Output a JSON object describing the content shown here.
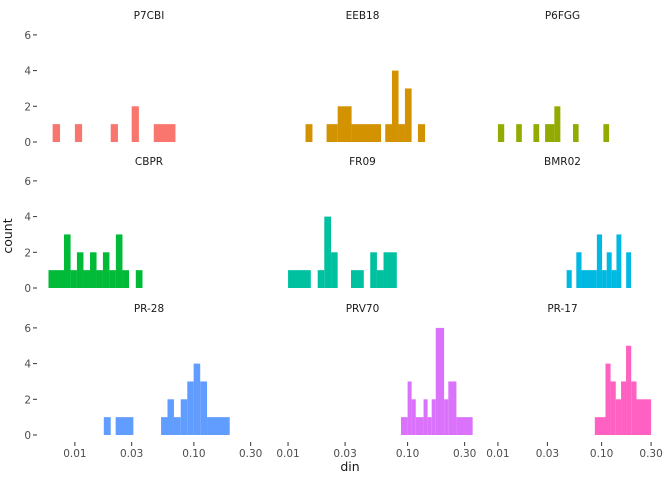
{
  "chart_data": {
    "type": "histogram-facets",
    "xlabel": "din",
    "ylabel": "count",
    "x_scale": "log10",
    "x_ticks": [
      "0.01",
      "0.03",
      "0.10",
      "0.30"
    ],
    "x_tick_values": [
      0.01,
      0.03,
      0.1,
      0.3
    ],
    "ylim": [
      0,
      6
    ],
    "y_ticks": [
      "0",
      "2",
      "4",
      "6"
    ],
    "y_tick_values": [
      0,
      2,
      4,
      6
    ],
    "grid": false,
    "layout": {
      "rows": 3,
      "cols": 3
    },
    "colors": [
      "#F8766D",
      "#D39200",
      "#93AA00",
      "#00BA38",
      "#00C19F",
      "#00B9E3",
      "#619CFF",
      "#DB72FB",
      "#FF61C3"
    ],
    "facets": [
      {
        "title": "P7CBI",
        "color": "#F8766D",
        "bins": [
          {
            "x0": 0.0065,
            "x1": 0.0075,
            "count": 1
          },
          {
            "x0": 0.01,
            "x1": 0.0115,
            "count": 1
          },
          {
            "x0": 0.02,
            "x1": 0.023,
            "count": 1
          },
          {
            "x0": 0.03,
            "x1": 0.0345,
            "count": 2
          },
          {
            "x0": 0.046,
            "x1": 0.07,
            "count": 1
          }
        ]
      },
      {
        "title": "EEB18",
        "color": "#D39200",
        "bins": [
          {
            "x0": 0.014,
            "x1": 0.016,
            "count": 1
          },
          {
            "x0": 0.021,
            "x1": 0.026,
            "count": 1
          },
          {
            "x0": 0.026,
            "x1": 0.034,
            "count": 2
          },
          {
            "x0": 0.034,
            "x1": 0.06,
            "count": 1
          },
          {
            "x0": 0.065,
            "x1": 0.074,
            "count": 1
          },
          {
            "x0": 0.074,
            "x1": 0.084,
            "count": 4
          },
          {
            "x0": 0.084,
            "x1": 0.095,
            "count": 1
          },
          {
            "x0": 0.095,
            "x1": 0.108,
            "count": 3
          },
          {
            "x0": 0.122,
            "x1": 0.14,
            "count": 1
          }
        ]
      },
      {
        "title": "P6FGG",
        "color": "#93AA00",
        "bins": [
          {
            "x0": 0.01,
            "x1": 0.0115,
            "count": 1
          },
          {
            "x0": 0.015,
            "x1": 0.017,
            "count": 1
          },
          {
            "x0": 0.022,
            "x1": 0.025,
            "count": 1
          },
          {
            "x0": 0.0285,
            "x1": 0.035,
            "count": 1
          },
          {
            "x0": 0.035,
            "x1": 0.04,
            "count": 2
          },
          {
            "x0": 0.053,
            "x1": 0.06,
            "count": 1
          },
          {
            "x0": 0.104,
            "x1": 0.118,
            "count": 1
          }
        ]
      },
      {
        "title": "CBPR",
        "color": "#00BA38",
        "bins": [
          {
            "x0": 0.006,
            "x1": 0.0081,
            "count": 1
          },
          {
            "x0": 0.0081,
            "x1": 0.0092,
            "count": 3
          },
          {
            "x0": 0.0092,
            "x1": 0.0104,
            "count": 1
          },
          {
            "x0": 0.0104,
            "x1": 0.0118,
            "count": 2
          },
          {
            "x0": 0.0118,
            "x1": 0.0134,
            "count": 1
          },
          {
            "x0": 0.0134,
            "x1": 0.0152,
            "count": 2
          },
          {
            "x0": 0.0152,
            "x1": 0.0172,
            "count": 1
          },
          {
            "x0": 0.0172,
            "x1": 0.0195,
            "count": 2
          },
          {
            "x0": 0.0195,
            "x1": 0.0221,
            "count": 1
          },
          {
            "x0": 0.0221,
            "x1": 0.0251,
            "count": 3
          },
          {
            "x0": 0.0251,
            "x1": 0.0285,
            "count": 1
          },
          {
            "x0": 0.0325,
            "x1": 0.037,
            "count": 1
          }
        ]
      },
      {
        "title": "FR09",
        "color": "#00C19F",
        "bins": [
          {
            "x0": 0.01,
            "x1": 0.0155,
            "count": 1
          },
          {
            "x0": 0.0177,
            "x1": 0.0201,
            "count": 1
          },
          {
            "x0": 0.0201,
            "x1": 0.0229,
            "count": 4
          },
          {
            "x0": 0.0229,
            "x1": 0.026,
            "count": 2
          },
          {
            "x0": 0.0336,
            "x1": 0.043,
            "count": 1
          },
          {
            "x0": 0.0487,
            "x1": 0.0554,
            "count": 2
          },
          {
            "x0": 0.0554,
            "x1": 0.0629,
            "count": 1
          },
          {
            "x0": 0.0629,
            "x1": 0.0812,
            "count": 2
          }
        ]
      },
      {
        "title": "BMR02",
        "color": "#00B9E3",
        "bins": [
          {
            "x0": 0.046,
            "x1": 0.0515,
            "count": 1
          },
          {
            "x0": 0.0515,
            "x1": 0.057,
            "count": 0
          },
          {
            "x0": 0.057,
            "x1": 0.064,
            "count": 2
          },
          {
            "x0": 0.064,
            "x1": 0.09,
            "count": 1
          },
          {
            "x0": 0.09,
            "x1": 0.101,
            "count": 3
          },
          {
            "x0": 0.101,
            "x1": 0.112,
            "count": 1
          },
          {
            "x0": 0.112,
            "x1": 0.125,
            "count": 2
          },
          {
            "x0": 0.125,
            "x1": 0.139,
            "count": 1
          },
          {
            "x0": 0.139,
            "x1": 0.155,
            "count": 3
          },
          {
            "x0": 0.1725,
            "x1": 0.192,
            "count": 2
          }
        ]
      },
      {
        "title": "PR-28",
        "color": "#619CFF",
        "bins": [
          {
            "x0": 0.0175,
            "x1": 0.02,
            "count": 1
          },
          {
            "x0": 0.022,
            "x1": 0.031,
            "count": 1
          },
          {
            "x0": 0.053,
            "x1": 0.06,
            "count": 1
          },
          {
            "x0": 0.06,
            "x1": 0.068,
            "count": 2
          },
          {
            "x0": 0.068,
            "x1": 0.0775,
            "count": 1
          },
          {
            "x0": 0.0775,
            "x1": 0.088,
            "count": 2
          },
          {
            "x0": 0.088,
            "x1": 0.0995,
            "count": 3
          },
          {
            "x0": 0.0995,
            "x1": 0.113,
            "count": 4
          },
          {
            "x0": 0.113,
            "x1": 0.129,
            "count": 3
          },
          {
            "x0": 0.129,
            "x1": 0.2,
            "count": 1
          }
        ]
      },
      {
        "title": "PRV70",
        "color": "#DB72FB",
        "bins": [
          {
            "x0": 0.088,
            "x1": 0.1,
            "count": 1
          },
          {
            "x0": 0.1,
            "x1": 0.108,
            "count": 3
          },
          {
            "x0": 0.108,
            "x1": 0.117,
            "count": 2
          },
          {
            "x0": 0.117,
            "x1": 0.136,
            "count": 1
          },
          {
            "x0": 0.136,
            "x1": 0.147,
            "count": 2
          },
          {
            "x0": 0.147,
            "x1": 0.159,
            "count": 1
          },
          {
            "x0": 0.159,
            "x1": 0.172,
            "count": 2
          },
          {
            "x0": 0.172,
            "x1": 0.202,
            "count": 6
          },
          {
            "x0": 0.202,
            "x1": 0.219,
            "count": 2
          },
          {
            "x0": 0.219,
            "x1": 0.256,
            "count": 3
          },
          {
            "x0": 0.256,
            "x1": 0.299,
            "count": 1
          },
          {
            "x0": 0.299,
            "x1": 0.35,
            "count": 1
          }
        ]
      },
      {
        "title": "PR-17",
        "color": "#FF61C3",
        "bins": [
          {
            "x0": 0.086,
            "x1": 0.109,
            "count": 1
          },
          {
            "x0": 0.109,
            "x1": 0.122,
            "count": 4
          },
          {
            "x0": 0.122,
            "x1": 0.137,
            "count": 3
          },
          {
            "x0": 0.137,
            "x1": 0.154,
            "count": 2
          },
          {
            "x0": 0.154,
            "x1": 0.172,
            "count": 3
          },
          {
            "x0": 0.172,
            "x1": 0.193,
            "count": 5
          },
          {
            "x0": 0.193,
            "x1": 0.217,
            "count": 3
          },
          {
            "x0": 0.217,
            "x1": 0.3,
            "count": 2
          }
        ]
      }
    ]
  }
}
